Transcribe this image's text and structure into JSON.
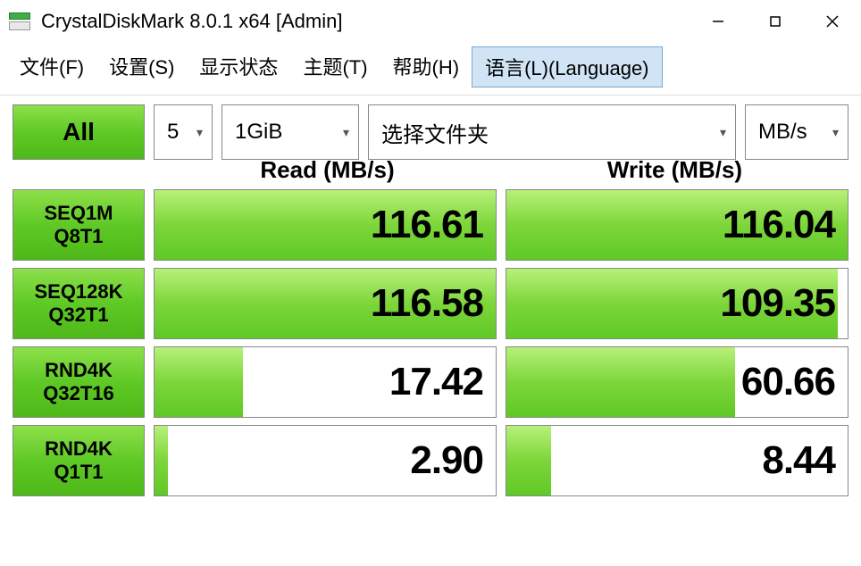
{
  "window": {
    "title": "CrystalDiskMark 8.0.1 x64 [Admin]"
  },
  "menu": {
    "file": "文件(F)",
    "settings": "设置(S)",
    "display": "显示状态",
    "theme": "主题(T)",
    "help": "帮助(H)",
    "language": "语言(L)(Language)"
  },
  "toolbar": {
    "all_label": "All",
    "count": "5",
    "size": "1GiB",
    "folder": "选择文件夹",
    "unit": "MB/s"
  },
  "headers": {
    "read": "Read (MB/s)",
    "write": "Write (MB/s)"
  },
  "tests": [
    {
      "name1": "SEQ1M",
      "name2": "Q8T1",
      "read": "116.61",
      "read_pct": 100,
      "write": "116.04",
      "write_pct": 100
    },
    {
      "name1": "SEQ128K",
      "name2": "Q32T1",
      "read": "116.58",
      "read_pct": 100,
      "write": "109.35",
      "write_pct": 97
    },
    {
      "name1": "RND4K",
      "name2": "Q32T16",
      "read": "17.42",
      "read_pct": 26,
      "write": "60.66",
      "write_pct": 67
    },
    {
      "name1": "RND4K",
      "name2": "Q1T1",
      "read": "2.90",
      "read_pct": 4,
      "write": "8.44",
      "write_pct": 13
    }
  ],
  "colors": {
    "green_grad_top": "#8de04a",
    "green_grad_mid": "#5fc926",
    "green_grad_bot": "#4db818",
    "bar_grad_top": "#b8f07a",
    "border": "#888888"
  }
}
